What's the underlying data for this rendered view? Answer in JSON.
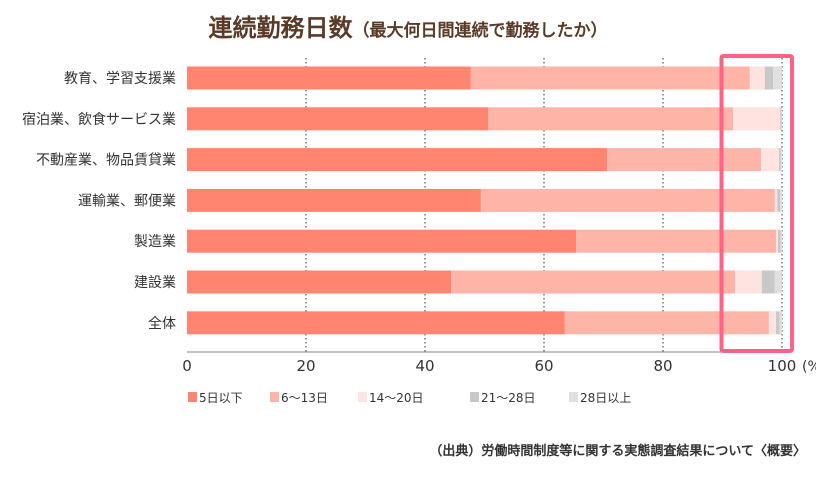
{
  "chart_data": {
    "type": "bar",
    "orientation": "horizontal",
    "stacked": true,
    "title": "連続勤務日数",
    "subtitle": "（最大何日間連続で勤務したか）",
    "xlabel": "",
    "unit_label": "(%)",
    "xlim": [
      0,
      100
    ],
    "x_ticks": [
      0,
      20,
      40,
      60,
      80,
      100
    ],
    "grid": "vertical dotted",
    "legend_position": "bottom",
    "categories": [
      "教育、学習支援業",
      "宿泊業、飲食サービス業",
      "不動産業、物品賃貸業",
      "運輸業、郵便業",
      "製造業",
      "建設業",
      "全体"
    ],
    "series": [
      {
        "name": "5日以下",
        "color": "#ff8570",
        "values": [
          47.7,
          50.6,
          70.6,
          49.4,
          65.4,
          44.4,
          63.5
        ]
      },
      {
        "name": "6〜13日",
        "color": "#ffb4a8",
        "values": [
          46.9,
          41.2,
          25.9,
          49.4,
          33.6,
          47.7,
          34.3
        ]
      },
      {
        "name": "14〜20日",
        "color": "#ffe3e0",
        "values": [
          2.5,
          7.9,
          3.0,
          0.4,
          0.3,
          4.5,
          1.2
        ]
      },
      {
        "name": "21〜28日",
        "color": "#c8c8c8",
        "values": [
          1.4,
          0.2,
          0.3,
          0.5,
          0.5,
          2.2,
          0.6
        ]
      },
      {
        "name": "28日以上",
        "color": "#e0e0e0",
        "values": [
          1.5,
          0.1,
          0.2,
          0.3,
          0.2,
          1.2,
          0.4
        ]
      }
    ],
    "highlight": {
      "range": [
        90,
        100
      ],
      "color": "#ff6285"
    }
  },
  "source": "（出典）労働時間制度等に関する実態調査結果について〈概要〉"
}
